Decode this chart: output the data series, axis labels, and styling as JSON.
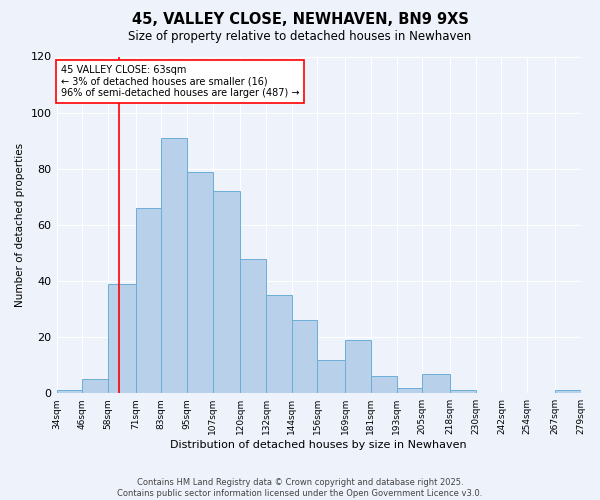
{
  "title": "45, VALLEY CLOSE, NEWHAVEN, BN9 9XS",
  "subtitle": "Size of property relative to detached houses in Newhaven",
  "xlabel": "Distribution of detached houses by size in Newhaven",
  "ylabel": "Number of detached properties",
  "bin_labels": [
    "34sqm",
    "46sqm",
    "58sqm",
    "71sqm",
    "83sqm",
    "95sqm",
    "107sqm",
    "120sqm",
    "132sqm",
    "144sqm",
    "156sqm",
    "169sqm",
    "181sqm",
    "193sqm",
    "205sqm",
    "218sqm",
    "230sqm",
    "242sqm",
    "254sqm",
    "267sqm",
    "279sqm"
  ],
  "bin_edges": [
    34,
    46,
    58,
    71,
    83,
    95,
    107,
    120,
    132,
    144,
    156,
    169,
    181,
    193,
    205,
    218,
    230,
    242,
    254,
    267,
    279
  ],
  "bar_heights": [
    1,
    5,
    39,
    66,
    91,
    79,
    72,
    48,
    35,
    26,
    12,
    19,
    6,
    2,
    7,
    1,
    0,
    0,
    0,
    1
  ],
  "bar_color": "#b8d0ea",
  "bar_edge_color": "#6aaed6",
  "red_line_x": 63,
  "annotation_title": "45 VALLEY CLOSE: 63sqm",
  "annotation_line1": "← 3% of detached houses are smaller (16)",
  "annotation_line2": "96% of semi-detached houses are larger (487) →",
  "ylim": [
    0,
    120
  ],
  "yticks": [
    0,
    20,
    40,
    60,
    80,
    100,
    120
  ],
  "bg_color": "#eef2fb",
  "grid_color": "#ffffff",
  "footer_line1": "Contains HM Land Registry data © Crown copyright and database right 2025.",
  "footer_line2": "Contains public sector information licensed under the Open Government Licence v3.0."
}
